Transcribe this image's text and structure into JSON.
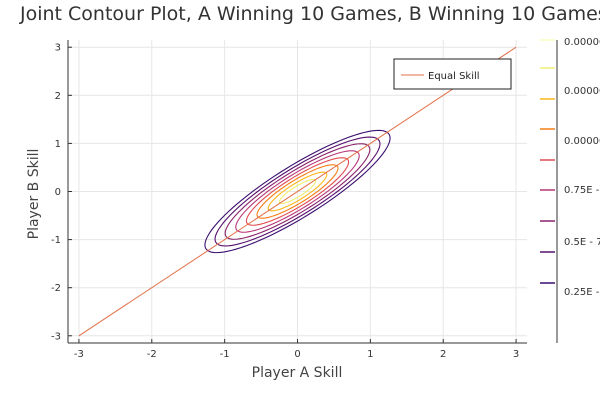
{
  "chart_data": {
    "type": "contour",
    "title": "Joint Contour Plot, A Winning 10 Games, B Winning 10 Games",
    "xlabel": "Player A Skill",
    "ylabel": "Player B Skill",
    "xlim": [
      -3.15,
      3.15
    ],
    "ylim": [
      -3.15,
      3.15
    ],
    "xticks": [
      -3,
      -2,
      -1,
      0,
      1,
      2,
      3
    ],
    "yticks": [
      -3,
      -2,
      -1,
      0,
      1,
      2,
      3
    ],
    "grid": true,
    "legend": {
      "placement": "top-right",
      "entries": [
        {
          "name": "Equal Skill",
          "color": "#e26f46"
        }
      ]
    },
    "reference_line": {
      "name": "Equal Skill",
      "x": [
        -3,
        3
      ],
      "y": [
        -3,
        3
      ],
      "color": "#e26f46"
    },
    "contour": {
      "center": [
        0,
        0
      ],
      "principal_axis_angle_deg": 45,
      "levels": [
        {
          "major_radius": 1.74,
          "minor_radius": 0.45,
          "color": "#3b0f70"
        },
        {
          "major_radius": 1.55,
          "minor_radius": 0.4,
          "color": "#57106e"
        },
        {
          "major_radius": 1.36,
          "minor_radius": 0.35,
          "color": "#8a226a"
        },
        {
          "major_radius": 1.16,
          "minor_radius": 0.3,
          "color": "#b73779"
        },
        {
          "major_radius": 0.96,
          "minor_radius": 0.25,
          "color": "#e04a4f"
        },
        {
          "major_radius": 0.76,
          "minor_radius": 0.2,
          "color": "#f57d15"
        },
        {
          "major_radius": 0.55,
          "minor_radius": 0.145,
          "color": "#fbb61a"
        },
        {
          "major_radius": 0.34,
          "minor_radius": 0.09,
          "color": "#f1ed71"
        }
      ]
    },
    "colorbar": {
      "colors": [
        "#3b0f70",
        "#57106e",
        "#8a226a",
        "#b73779",
        "#e04a4f",
        "#f57d15",
        "#fbb61a",
        "#f1ed71",
        "#fcfdbf"
      ],
      "labels": [
        "0.25E -",
        "0.5E - 7",
        "0.75E -",
        "0.00000",
        "0.00000",
        "0.00000"
      ]
    }
  }
}
